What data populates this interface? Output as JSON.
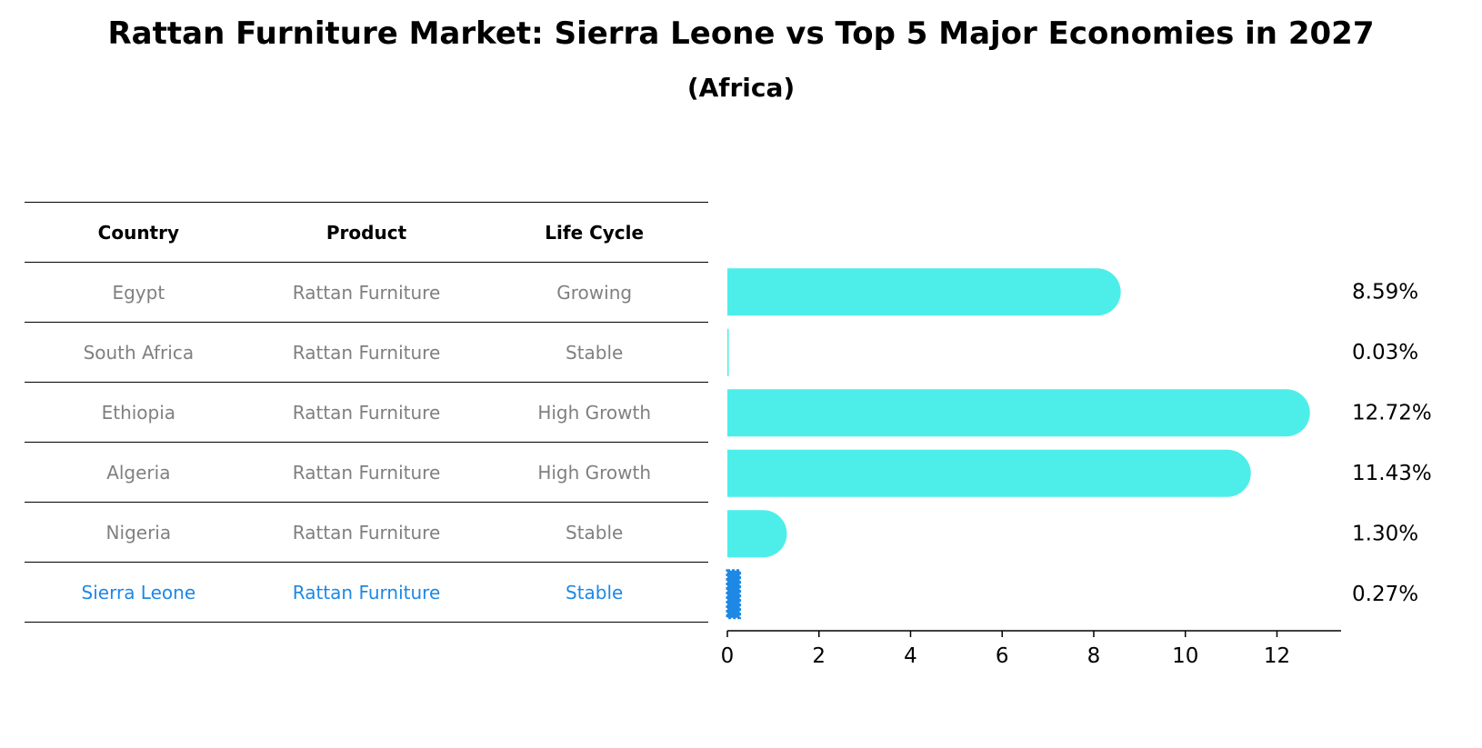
{
  "chart_data": {
    "type": "bar",
    "orientation": "horizontal",
    "title": "Rattan Furniture Market: Sierra Leone vs Top 5 Major Economies in 2027",
    "subtitle": "(Africa)",
    "columns": [
      "Country",
      "Product",
      "Life Cycle"
    ],
    "rows": [
      {
        "country": "Egypt",
        "product": "Rattan Furniture",
        "life_cycle": "Growing",
        "value": 8.59,
        "label": "8.59%"
      },
      {
        "country": "South Africa",
        "product": "Rattan Furniture",
        "life_cycle": "Stable",
        "value": 0.03,
        "label": "0.03%"
      },
      {
        "country": "Ethiopia",
        "product": "Rattan Furniture",
        "life_cycle": "High Growth",
        "value": 12.72,
        "label": "12.72%"
      },
      {
        "country": "Algeria",
        "product": "Rattan Furniture",
        "life_cycle": "High Growth",
        "value": 11.43,
        "label": "11.43%"
      },
      {
        "country": "Nigeria",
        "product": "Rattan Furniture",
        "life_cycle": "Stable",
        "value": 1.3,
        "label": "1.30%"
      },
      {
        "country": "Sierra Leone",
        "product": "Rattan Furniture",
        "life_cycle": "Stable",
        "value": 0.27,
        "label": "0.27%",
        "highlight": true
      }
    ],
    "xlim": [
      0,
      13.4
    ],
    "xticks": [
      0,
      2,
      4,
      6,
      8,
      10,
      12
    ],
    "bar_color": "#4DEEEA",
    "highlight_color": "#1E88E5",
    "text_color": "#808080",
    "grid": false
  }
}
